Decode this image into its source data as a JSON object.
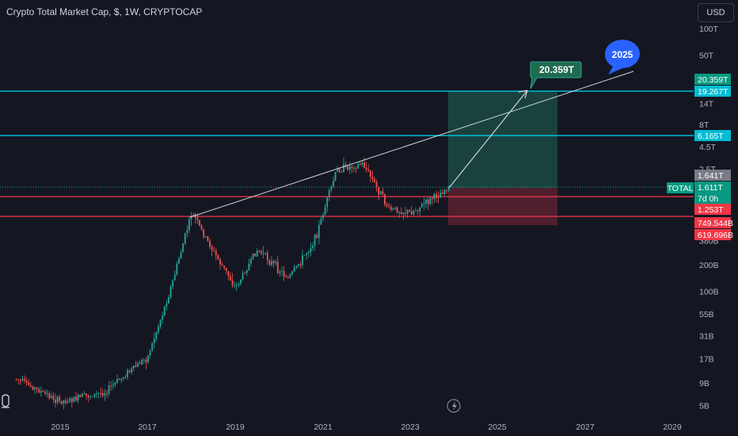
{
  "header": {
    "title": "Crypto Total Market Cap, $, 1W, CRYPTOCAP",
    "currency_button": "USD"
  },
  "colors": {
    "background": "#141722",
    "up": "#26a69a",
    "down": "#ef5350",
    "cyan_line": "#00bcd4",
    "red_line": "#f23645",
    "trend_line": "#d1d4dc",
    "profit_zone": "#1a4a43",
    "loss_zone": "#5a2130",
    "callout_bg": "#1e6b4f",
    "bubble_bg": "#2962ff"
  },
  "chart_data": {
    "type": "candlestick",
    "y_scale": "log",
    "x_ticks": [
      "2015",
      "2017",
      "2019",
      "2021",
      "2023",
      "2025",
      "2027",
      "2029"
    ],
    "y_ticks": [
      "100T",
      "50T",
      "14T",
      "8T",
      "4.5T",
      "2.5T",
      "380B",
      "200B",
      "100B",
      "55B",
      "31B",
      "17B",
      "9B",
      "5B"
    ],
    "horizontal_lines": [
      {
        "value": "19.267T",
        "color": "#00bcd4"
      },
      {
        "value": "6.165T",
        "color": "#00bcd4"
      },
      {
        "value": "1.253T",
        "color": "#f23645"
      },
      {
        "value": "749.544B",
        "color": "#f23645"
      }
    ],
    "price_tags": [
      {
        "label": "20.359T",
        "bg": "#089981"
      },
      {
        "label": "19.267T",
        "bg": "#00bcd4"
      },
      {
        "label": "6.165T",
        "bg": "#00bcd4"
      },
      {
        "label": "1.641T",
        "bg": "#787b86"
      },
      {
        "label": "1.611T",
        "bg": "#089981"
      },
      {
        "label": "7d 0h",
        "bg": "#089981"
      },
      {
        "label": "1.253T",
        "bg": "#f23645"
      },
      {
        "label": "749.544B",
        "bg": "#f23645"
      },
      {
        "label": "619.696B",
        "bg": "#f23645"
      }
    ],
    "symbol_tag": "TOTAL",
    "price_path": [
      [
        "2014.0",
        "10B"
      ],
      [
        "2015.0",
        "5.5B"
      ],
      [
        "2016.0",
        "7B"
      ],
      [
        "2017.0",
        "18B"
      ],
      [
        "2017.5",
        "100B"
      ],
      [
        "2018.0",
        "800B"
      ],
      [
        "2018.5",
        "280B"
      ],
      [
        "2019.0",
        "110B"
      ],
      [
        "2019.5",
        "300B"
      ],
      [
        "2020.2",
        "140B"
      ],
      [
        "2020.8",
        "380B"
      ],
      [
        "2021.3",
        "2.4T"
      ],
      [
        "2021.9",
        "2.9T"
      ],
      [
        "2022.5",
        "860B"
      ],
      [
        "2023.0",
        "800B"
      ],
      [
        "2023.9",
        "1.6T"
      ]
    ],
    "long_position": {
      "target": "20.359T",
      "entry": "1.611T",
      "stop": "619.696B"
    },
    "trend_line": {
      "from": [
        "2018.0",
        "820B"
      ],
      "to": [
        "2028.2",
        "26T"
      ]
    },
    "projection": {
      "from": [
        "2023.9",
        "1.6T"
      ],
      "to": [
        "2025.7",
        "19.267T"
      ]
    },
    "callouts": {
      "target_label": "20.359T",
      "year_label": "2025"
    }
  }
}
